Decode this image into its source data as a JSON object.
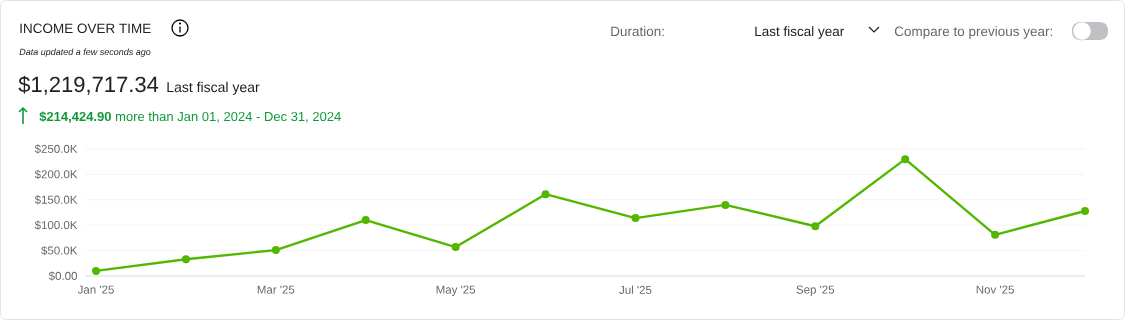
{
  "chart_data": {
    "type": "line",
    "title": "INCOME OVER TIME",
    "subtitle": "Data updated a few seconds ago",
    "annotations": [
      "$1,219,717.34",
      "Last fiscal year",
      "**$214,424.90** more than Jan 01, 2024 - Dec 31, 2024",
      "Duration:",
      "Last fiscal year",
      "Compare to previous year:"
    ],
    "categories": [
      "Jan '25",
      null,
      "Mar '25",
      null,
      "May '25",
      null,
      "Jul '25",
      null,
      "Sep '25",
      null,
      "Nov '25",
      null
    ],
    "values": [
      10000,
      33000,
      51000,
      110000,
      57000,
      161000,
      114000,
      140000,
      98000,
      230000,
      81000,
      128000
    ],
    "color": "#53b700",
    "ylim": [
      0,
      250000
    ],
    "yticks": [
      {
        "value": 0,
        "label": "$0.00"
      },
      {
        "value": 50000,
        "label": "$50.0K"
      },
      {
        "value": 100000,
        "label": "$100.0K"
      },
      {
        "value": 150000,
        "label": "$150.0K"
      },
      {
        "value": 200000,
        "label": "$200.0K"
      },
      {
        "value": 250000,
        "label": "$250.0K"
      }
    ],
    "grid": "y",
    "marker": "circle",
    "line_style": "solid"
  }
}
